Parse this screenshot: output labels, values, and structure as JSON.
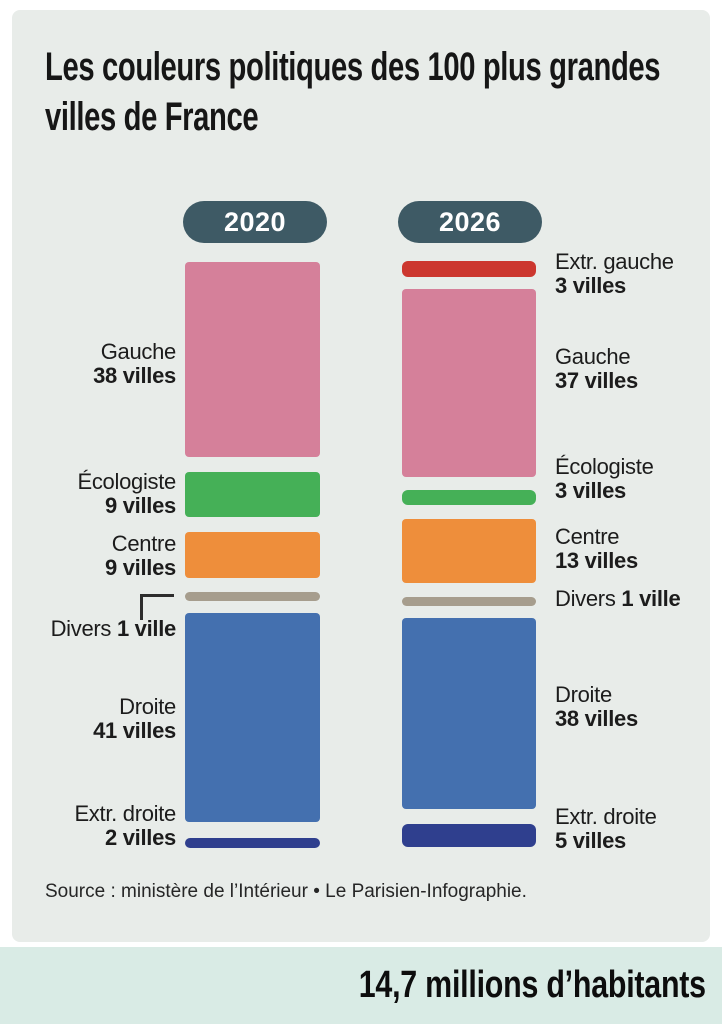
{
  "header": {
    "title_line1": "Les couleurs politiques des 100 plus grandes",
    "title_line2": "villes de France"
  },
  "columns": [
    {
      "year_label": "2020"
    },
    {
      "year_label": "2026"
    }
  ],
  "labels": {
    "left": [
      {
        "party": "Gauche",
        "count": "38 villes"
      },
      {
        "party": "Écologiste",
        "count": "9 villes"
      },
      {
        "party": "Centre",
        "count": "9 villes"
      },
      {
        "party": "Divers",
        "count": "1 ville"
      },
      {
        "party": "Droite",
        "count": "41 villes"
      },
      {
        "party": "Extr. droite",
        "count": "2 villes"
      }
    ],
    "right": [
      {
        "party": "Extr. gauche",
        "count": "3 villes"
      },
      {
        "party": "Gauche",
        "count": "37 villes"
      },
      {
        "party": "Écologiste",
        "count": "3 villes"
      },
      {
        "party": "Centre",
        "count": "13 villes"
      },
      {
        "party": "Divers",
        "count": "1 ville"
      },
      {
        "party": "Droite",
        "count": "38 villes"
      },
      {
        "party": "Extr. droite",
        "count": "5 villes"
      }
    ]
  },
  "colors": {
    "extr_gauche": "#cc372f",
    "gauche": "#d5809a",
    "ecologiste": "#45b057",
    "centre": "#ee8e3b",
    "divers": "#a69d8d",
    "droite": "#4470af",
    "extr_droite": "#2f3f8e",
    "year_pill": "#3e5a65",
    "card_bg": "#e8ece9",
    "band_bg": "#d9ebe5"
  },
  "source": {
    "text": "Source : ministère de l’Intérieur • Le Parisien-Infographie."
  },
  "footer": {
    "text": "14,7 millions d’habitants"
  },
  "chart_data": {
    "type": "bar",
    "subtype": "stacked_column_comparison",
    "title": "Les couleurs politiques des 100 plus grandes villes de France",
    "categories": [
      "2020",
      "2026"
    ],
    "units": "villes",
    "total_per_column": 100,
    "series": [
      {
        "name": "Extr. gauche",
        "color": "#cc372f",
        "values": [
          0,
          3
        ]
      },
      {
        "name": "Gauche",
        "color": "#d5809a",
        "values": [
          38,
          37
        ]
      },
      {
        "name": "Écologiste",
        "color": "#45b057",
        "values": [
          9,
          3
        ]
      },
      {
        "name": "Centre",
        "color": "#ee8e3b",
        "values": [
          9,
          13
        ]
      },
      {
        "name": "Divers",
        "color": "#a69d8d",
        "values": [
          1,
          1
        ]
      },
      {
        "name": "Droite",
        "color": "#4470af",
        "values": [
          41,
          38
        ]
      },
      {
        "name": "Extr. droite",
        "color": "#2f3f8e",
        "values": [
          2,
          5
        ]
      }
    ],
    "legend_position": "side-labels",
    "grid": false,
    "source": "Source : ministère de l’Intérieur • Le Parisien-Infographie.",
    "annotation": "14,7 millions d’habitants"
  }
}
